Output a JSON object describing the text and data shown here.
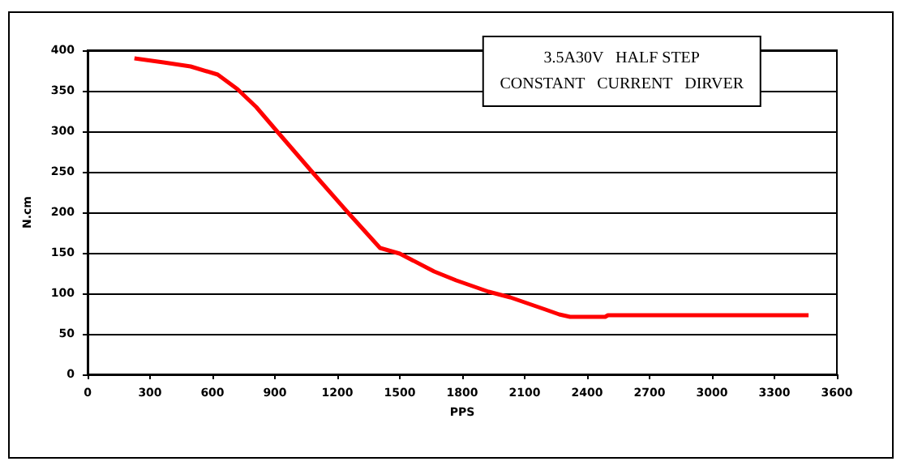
{
  "chart_data": {
    "type": "line",
    "title": "3.5A30V   HALF STEP\nCONSTANT   CURRENT   DIRVER",
    "xlabel": "PPS",
    "ylabel": "N.cm",
    "x": [
      225,
      365,
      495,
      625,
      720,
      810,
      910,
      1075,
      1250,
      1405,
      1500,
      1665,
      1771,
      1927,
      2031,
      2200,
      2266,
      2318,
      2487,
      2500,
      3464
    ],
    "series": [
      {
        "color": "#ff0000",
        "values": [
          390,
          385,
          380,
          370,
          352,
          330,
          300,
          251,
          200,
          156,
          149,
          127,
          116,
          102,
          95,
          80,
          74,
          71,
          71,
          73,
          73
        ]
      }
    ],
    "xlim": [
      0,
      3600
    ],
    "xticks": [
      0,
      300,
      600,
      900,
      1200,
      1500,
      1800,
      2100,
      2400,
      2700,
      3000,
      3300,
      3600
    ],
    "ylim": [
      0,
      400
    ],
    "yticks": [
      0,
      50,
      100,
      150,
      200,
      250,
      300,
      350,
      400
    ],
    "grid": "y",
    "marker": "none",
    "line_style": "solid"
  }
}
